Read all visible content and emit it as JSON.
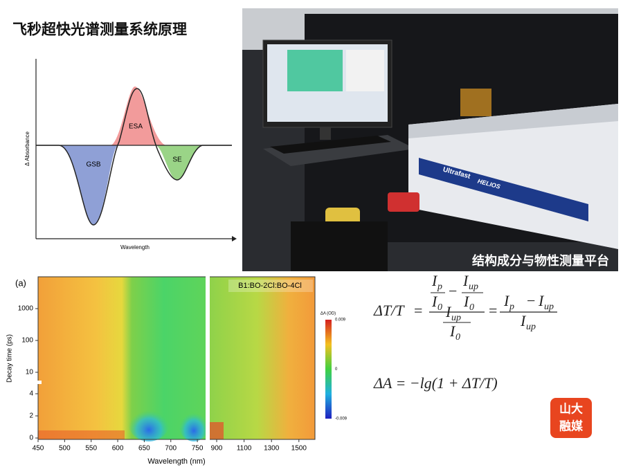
{
  "header": {
    "title": "飞秒超快光谱测量系统原理"
  },
  "schematic": {
    "y_label": "Δ Absorbance",
    "x_label": "Wavelength",
    "regions": [
      "GSB",
      "ESA",
      "SE"
    ]
  },
  "photo": {
    "caption": "结构成分与物性测量平台",
    "brand": "Ultrafast",
    "product": "HELIOS"
  },
  "heatmap": {
    "panel_label": "(a)",
    "sample": "B1:BO-2Cl:BO-4Cl",
    "y_label": "Decay time (ps)",
    "x_label": "Wavelength (nm)",
    "yticks": [
      0,
      2,
      4,
      10,
      100,
      1000
    ],
    "xticks": [
      450,
      500,
      550,
      600,
      650,
      700,
      750,
      900,
      1100,
      1300,
      1500
    ],
    "colorbar": {
      "label": "ΔA (OD)",
      "ticks": [
        0.009,
        0,
        -0.009
      ]
    }
  },
  "equations": {
    "eq1": {
      "lhs": "ΔT/T",
      "equals": "=",
      "i": "I",
      "sub_p": "p",
      "sub_0": "0",
      "sub_up": "up",
      "minus": "−"
    },
    "eq2": "ΔA = −lg(1 + ΔT/T)"
  },
  "logo": {
    "top": "山大",
    "bottom": "融媒"
  }
}
